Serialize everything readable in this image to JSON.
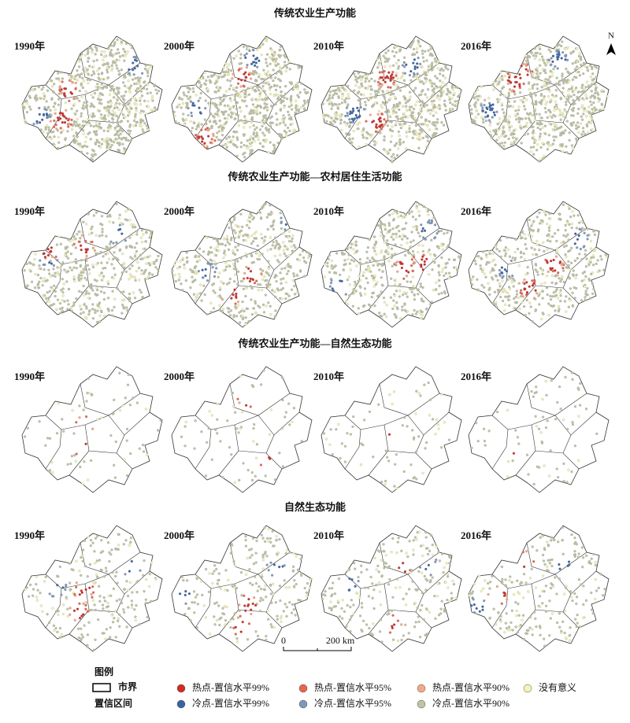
{
  "sections": [
    {
      "title": "传统农业生产功能",
      "years": [
        "1990年",
        "2000年",
        "2010年",
        "2016年"
      ]
    },
    {
      "title": "传统农业生产功能—农村居住生活功能",
      "years": [
        "1990年",
        "2000年",
        "2010年",
        "2016年"
      ]
    },
    {
      "title": "传统农业生产功能—自然生态功能",
      "years": [
        "1990年",
        "2000年",
        "2010年",
        "2016年"
      ]
    },
    {
      "title": "自然生态功能",
      "years": [
        "1990年",
        "2000年",
        "2010年",
        "2016年"
      ]
    }
  ],
  "north": "N",
  "scale": {
    "start": "0",
    "end": "200 km"
  },
  "legend": {
    "title": "图例",
    "boundary": "市界",
    "confidence": "置信区间",
    "items": [
      {
        "label": "热点-置信水平99%",
        "color": "#d02a24"
      },
      {
        "label": "热点-置信水平95%",
        "color": "#e8644a"
      },
      {
        "label": "热点-置信水平90%",
        "color": "#f2a986"
      },
      {
        "label": "没有意义",
        "color": "#f6f2b4"
      },
      {
        "label": "冷点-置信水平99%",
        "color": "#3864a6"
      },
      {
        "label": "冷点-置信水平95%",
        "color": "#7d98bd"
      },
      {
        "label": "冷点-置信水平90%",
        "color": "#bfc4a4"
      }
    ]
  }
}
